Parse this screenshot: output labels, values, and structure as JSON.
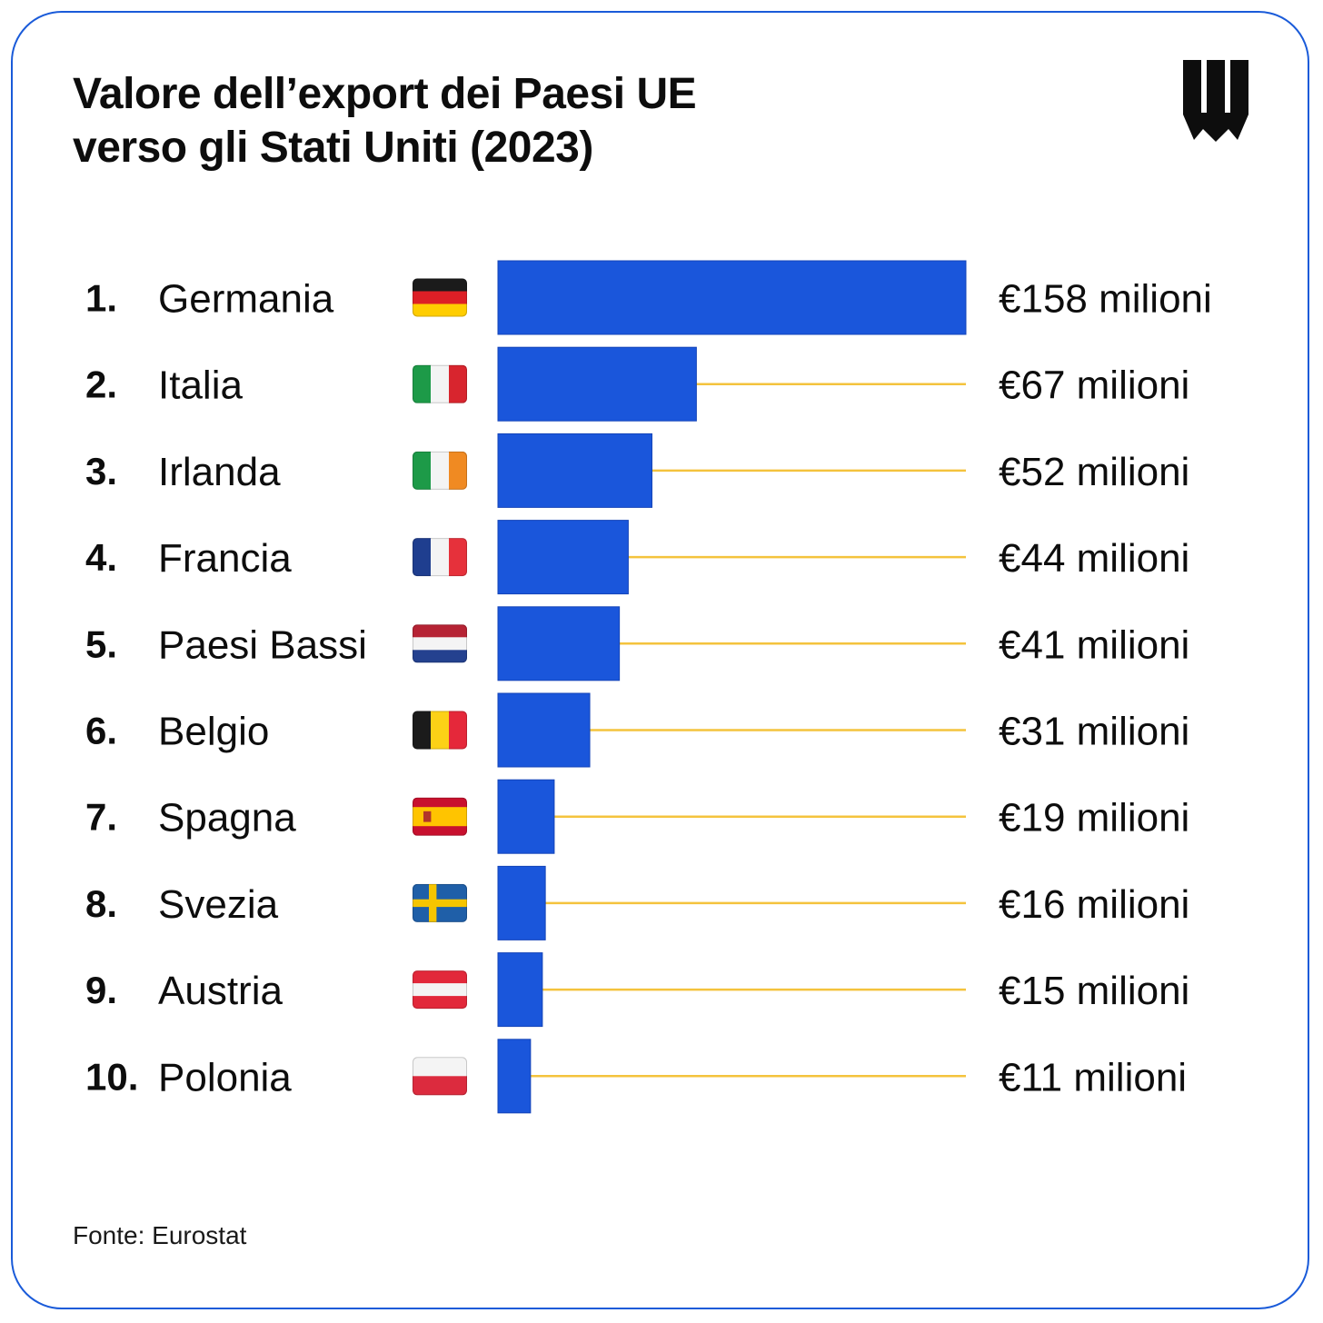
{
  "title_lines": [
    "Valore dell’export dei Paesi UE",
    "verso gli Stati Uniti (2023)"
  ],
  "source": "Fonte: Eurostat",
  "colors": {
    "bar": "#1a56db",
    "guide_line": "#f4c33d",
    "border": "#1a5bd9",
    "text": "#0d0d0d"
  },
  "logo_icon": "shield-logo-icon",
  "chart_data": {
    "type": "bar",
    "orientation": "horizontal",
    "title": "Valore dell’export dei Paesi UE verso gli Stati Uniti (2023)",
    "xlabel": "",
    "ylabel": "",
    "xlim": [
      0,
      158
    ],
    "grid": false,
    "legend": "none",
    "unit": "milioni",
    "rows": [
      {
        "rank": "1.",
        "country": "Germania",
        "flag": "de",
        "value": 158,
        "label": "€158 milioni"
      },
      {
        "rank": "2.",
        "country": "Italia",
        "flag": "it",
        "value": 67,
        "label": "€67 milioni"
      },
      {
        "rank": "3.",
        "country": "Irlanda",
        "flag": "ie",
        "value": 52,
        "label": "€52 milioni"
      },
      {
        "rank": "4.",
        "country": "Francia",
        "flag": "fr",
        "value": 44,
        "label": "€44 milioni"
      },
      {
        "rank": "5.",
        "country": "Paesi Bassi",
        "flag": "nl",
        "value": 41,
        "label": "€41 milioni"
      },
      {
        "rank": "6.",
        "country": "Belgio",
        "flag": "be",
        "value": 31,
        "label": "€31 milioni"
      },
      {
        "rank": "7.",
        "country": "Spagna",
        "flag": "es",
        "value": 19,
        "label": "€19 milioni"
      },
      {
        "rank": "8.",
        "country": "Svezia",
        "flag": "se",
        "value": 16,
        "label": "€16 milioni"
      },
      {
        "rank": "9.",
        "country": "Austria",
        "flag": "at",
        "value": 15,
        "label": "€15 milioni"
      },
      {
        "rank": "10.",
        "country": "Polonia",
        "flag": "pl",
        "value": 11,
        "label": "€11 milioni"
      }
    ]
  }
}
